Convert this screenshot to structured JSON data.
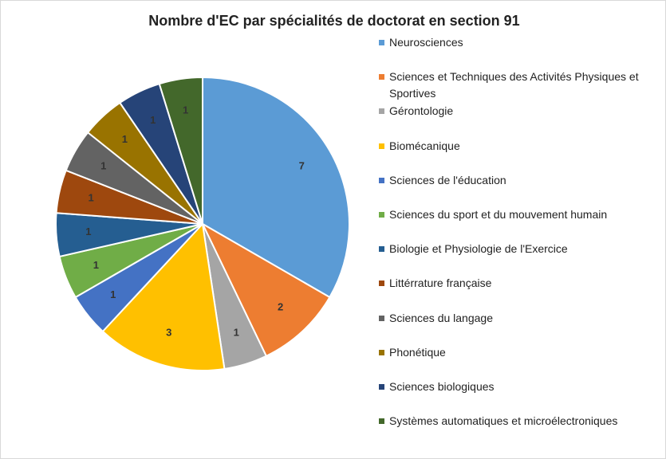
{
  "chart_data": {
    "type": "pie",
    "title": "Nombre d'EC par spécialités de doctorat en section 91",
    "categories": [
      "Neurosciences",
      "Sciences et Techniques des Activités Physiques et Sportives",
      "Gérontologie",
      "Biomécanique",
      "Sciences de l'éducation",
      " Sciences du sport et du mouvement humain",
      "Biologie et Physiologie de l'Exercice",
      "Littérrature française",
      "Sciences du langage",
      "Phonétique",
      "Sciences biologiques",
      "Systèmes automatiques et microélectroniques"
    ],
    "values": [
      7,
      2,
      1,
      3,
      1,
      1,
      1,
      1,
      1,
      1,
      1,
      1
    ],
    "colors": [
      "#5b9bd5",
      "#ed7d31",
      "#a5a5a5",
      "#ffc000",
      "#4472c4",
      "#70ad47",
      "#255e91",
      "#9e480e",
      "#636363",
      "#997300",
      "#264478",
      "#43682b"
    ],
    "legend": "right"
  }
}
